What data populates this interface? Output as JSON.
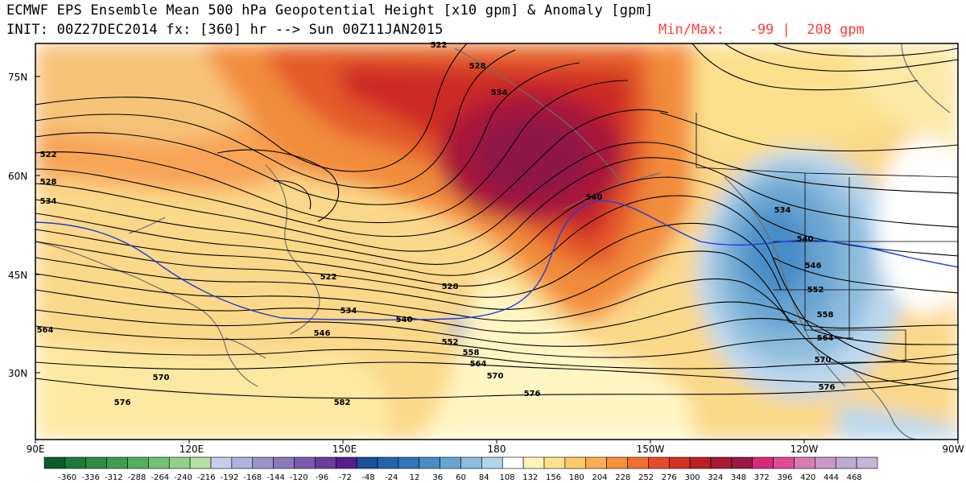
{
  "header": {
    "line1": "ECMWF EPS Ensemble Mean 500 hPa Geopotential Height [x10 gpm] & Anomaly [gpm]",
    "line2": "INIT: 00Z27DEC2014 fx: [360] hr --> Sun 00Z11JAN2015",
    "minmax": "Min/Max:   -99 |  208 gpm"
  },
  "axes": {
    "lat_labels": [
      "75N",
      "60N",
      "45N",
      "30N"
    ],
    "lon_labels": [
      "90E",
      "120E",
      "150E",
      "180",
      "150W",
      "120W",
      "90W"
    ]
  },
  "contour_labels": [
    {
      "text": "522"
    },
    {
      "text": "528"
    },
    {
      "text": "534"
    },
    {
      "text": "522"
    },
    {
      "text": "528"
    },
    {
      "text": "534"
    },
    {
      "text": "564"
    },
    {
      "text": "570"
    },
    {
      "text": "576"
    },
    {
      "text": "522"
    },
    {
      "text": "528"
    },
    {
      "text": "534"
    },
    {
      "text": "540"
    },
    {
      "text": "546"
    },
    {
      "text": "552"
    },
    {
      "text": "558"
    },
    {
      "text": "564"
    },
    {
      "text": "570"
    },
    {
      "text": "576"
    },
    {
      "text": "582"
    },
    {
      "text": "540"
    },
    {
      "text": "534"
    },
    {
      "text": "540"
    },
    {
      "text": "546"
    },
    {
      "text": "552"
    },
    {
      "text": "558"
    },
    {
      "text": "564"
    },
    {
      "text": "570"
    },
    {
      "text": "576"
    }
  ],
  "colorbar": {
    "labels": [
      "-360",
      "-336",
      "-312",
      "-288",
      "-264",
      "-240",
      "-216",
      "-192",
      "-168",
      "-144",
      "-120",
      "-96",
      "-72",
      "-48",
      "-24",
      "12",
      "36",
      "60",
      "84",
      "108",
      "132",
      "156",
      "180",
      "204",
      "228",
      "252",
      "276",
      "300",
      "324",
      "348",
      "372",
      "396",
      "420",
      "444",
      "468"
    ],
    "colors": [
      "#0a5a2a",
      "#1a7a3a",
      "#2e8b44",
      "#3f9d50",
      "#55ae60",
      "#73c076",
      "#93d08c",
      "#b6e0a6",
      "#c8cde8",
      "#aeb2dc",
      "#9a94cc",
      "#8a78bc",
      "#7a5aac",
      "#6a3c9c",
      "#55208c",
      "#1b4f9c",
      "#2462aa",
      "#3176b8",
      "#4a8cc6",
      "#6aa4d2",
      "#8cbcde",
      "#b2d4ea",
      "#ffffff",
      "#fff4b8",
      "#fde28e",
      "#fcca6c",
      "#f9ae52",
      "#f6903c",
      "#ef6e30",
      "#e54a2a",
      "#d23224",
      "#bc2024",
      "#a81830",
      "#981840",
      "#d8287c",
      "#e04b96",
      "#d87cb0",
      "#c99ac4",
      "#bdaccc",
      "#c8b4d4"
    ]
  },
  "colors": {
    "contour": "#000000",
    "line_540": "#1f3fd8",
    "coast": "#6e6e6e",
    "minmax_text": "#ff3b3b"
  }
}
